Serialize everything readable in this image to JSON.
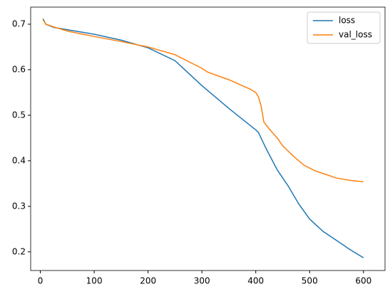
{
  "chart_data": {
    "type": "line",
    "series": [
      {
        "name": "loss",
        "color": "#1f77b4",
        "x": [
          5,
          10,
          25,
          50,
          100,
          150,
          200,
          250,
          300,
          350,
          400,
          405,
          420,
          440,
          460,
          480,
          500,
          525,
          550,
          575,
          600
        ],
        "values": [
          0.712,
          0.7,
          0.693,
          0.688,
          0.678,
          0.665,
          0.648,
          0.62,
          0.565,
          0.515,
          0.468,
          0.462,
          0.425,
          0.38,
          0.345,
          0.305,
          0.272,
          0.245,
          0.225,
          0.205,
          0.187
        ]
      },
      {
        "name": "val_loss",
        "color": "#ff7f0e",
        "x": [
          5,
          10,
          25,
          50,
          100,
          150,
          200,
          250,
          300,
          310,
          350,
          390,
          400,
          405,
          410,
          415,
          425,
          440,
          450,
          470,
          490,
          510,
          530,
          550,
          575,
          600
        ],
        "values": [
          0.71,
          0.7,
          0.694,
          0.685,
          0.673,
          0.662,
          0.65,
          0.633,
          0.603,
          0.595,
          0.578,
          0.557,
          0.55,
          0.54,
          0.52,
          0.485,
          0.47,
          0.45,
          0.433,
          0.41,
          0.39,
          0.378,
          0.37,
          0.362,
          0.357,
          0.354
        ]
      }
    ],
    "xlim": [
      -18,
      640
    ],
    "xticks": [
      0,
      100,
      200,
      300,
      400,
      500,
      600
    ],
    "ylim": [
      0.159,
      0.7375
    ],
    "yticks": [
      0.2,
      0.3,
      0.4,
      0.5,
      0.6,
      0.7
    ],
    "legend": "upper right"
  }
}
